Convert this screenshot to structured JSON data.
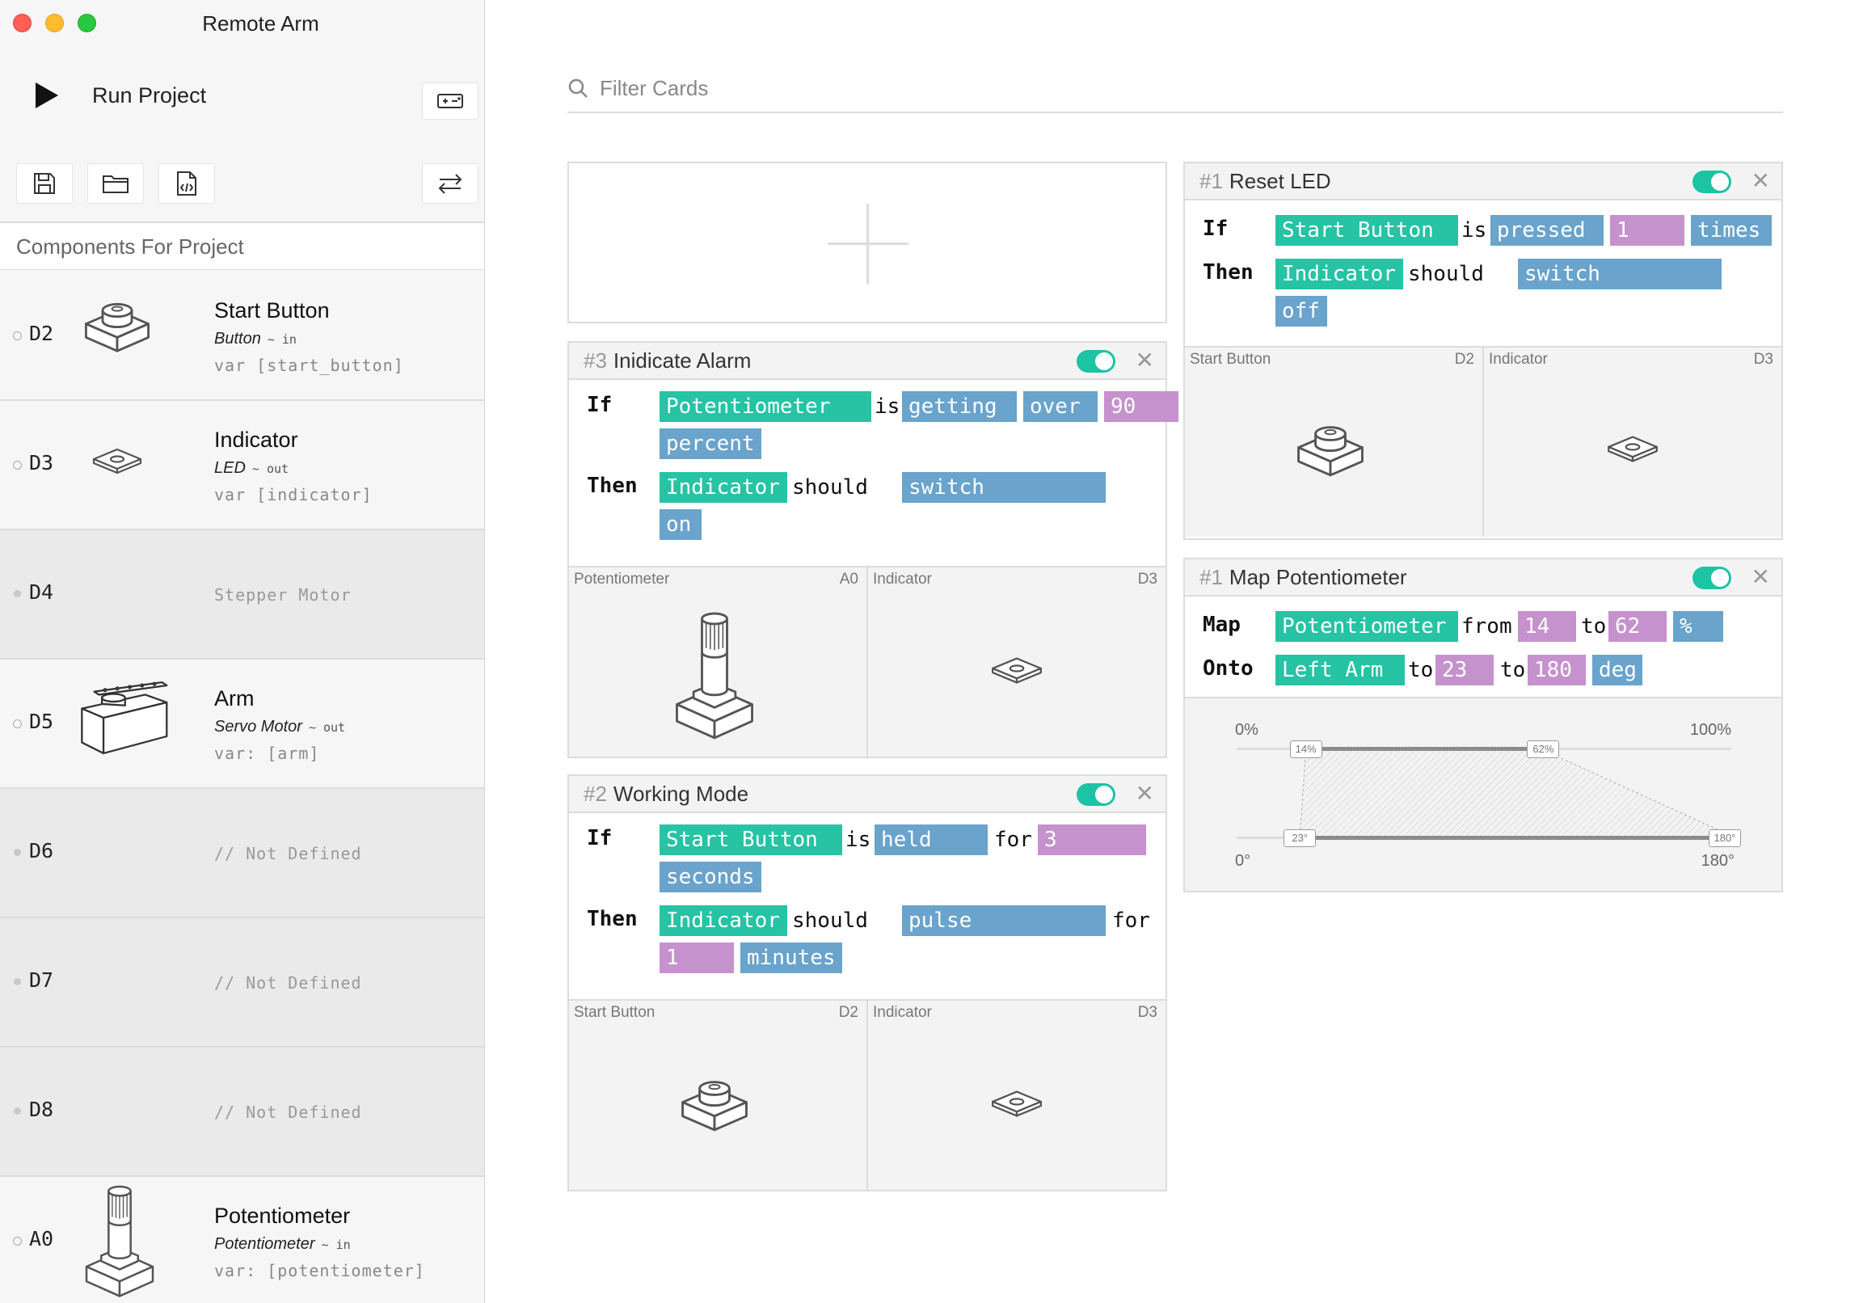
{
  "app": {
    "title": "Remote Arm"
  },
  "toolbar": {
    "run_label": "Run Project",
    "icons": [
      "play-icon",
      "keyboard-icon",
      "save-icon",
      "folder-icon",
      "code-file-icon",
      "swap-icon"
    ]
  },
  "sidebar": {
    "header": "Components For Project",
    "pins": [
      {
        "pin": "D2",
        "name": "Start Button",
        "type": "Button",
        "dir": "in",
        "var": "var [start_button]"
      },
      {
        "pin": "D3",
        "name": "Indicator",
        "type": "LED",
        "dir": "out",
        "var": "var [indicator]"
      },
      {
        "pin": "D4",
        "empty": "Stepper Motor"
      },
      {
        "pin": "D5",
        "name": "Arm",
        "type": "Servo Motor",
        "dir": "out",
        "var": "var: [arm]"
      },
      {
        "pin": "D6",
        "empty": "// Not Defined"
      },
      {
        "pin": "D7",
        "empty": "// Not Defined"
      },
      {
        "pin": "D8",
        "empty": "// Not Defined"
      },
      {
        "pin": "A0",
        "name": "Potentiometer",
        "type": "Potentiometer",
        "dir": "in",
        "var": "var: [potentiometer]"
      }
    ]
  },
  "search": {
    "placeholder": "Filter Cards"
  },
  "cards": {
    "alarm": {
      "num": "#3",
      "title": "Inidicate Alarm",
      "enabled": true,
      "if_kw": "If",
      "then_kw": "Then",
      "if_subject": "Potentiometer",
      "if_verb": "is",
      "if_state": "getting",
      "if_op": "over",
      "if_value": "90",
      "if_unit": "percent",
      "then_subject": "Indicator",
      "then_verb": "should",
      "then_action": "switch",
      "then_value": "on",
      "components": [
        {
          "name": "Potentiometer",
          "pin": "A0"
        },
        {
          "name": "Indicator",
          "pin": "D3"
        }
      ]
    },
    "working": {
      "num": "#2",
      "title": "Working Mode",
      "enabled": true,
      "if_kw": "If",
      "then_kw": "Then",
      "if_subject": "Start Button",
      "if_verb": "is",
      "if_state": "held",
      "if_for": "for",
      "if_value": "3",
      "if_unit": "seconds",
      "then_subject": "Indicator",
      "then_verb": "should",
      "then_action": "pulse",
      "then_for": "for",
      "then_value": "1",
      "then_unit": "minutes",
      "components": [
        {
          "name": "Start Button",
          "pin": "D2"
        },
        {
          "name": "Indicator",
          "pin": "D3"
        }
      ]
    },
    "reset": {
      "num": "#1",
      "title": "Reset LED",
      "enabled": true,
      "if_kw": "If",
      "then_kw": "Then",
      "if_subject": "Start Button",
      "if_verb": "is",
      "if_state": "pressed",
      "if_value": "1",
      "if_unit": "times",
      "then_subject": "Indicator",
      "then_verb": "should",
      "then_action": "switch",
      "then_value": "off",
      "components": [
        {
          "name": "Start Button",
          "pin": "D2"
        },
        {
          "name": "Indicator",
          "pin": "D3"
        }
      ]
    },
    "map": {
      "num": "#1",
      "title": "Map Potentiometer",
      "enabled": true,
      "map_kw": "Map",
      "onto_kw": "Onto",
      "map_subject": "Potentiometer",
      "from_word": "from",
      "from_value": "14",
      "to_word": "to",
      "to_value": "62",
      "unit": "%",
      "onto_subject": "Left Arm",
      "onto_to_word": "to",
      "onto_from_value": "23",
      "onto_to_word2": "to",
      "onto_to_value": "180",
      "onto_unit": "deg",
      "slider": {
        "in_min_label": "0%",
        "in_max_label": "100%",
        "out_min_label": "0°",
        "out_max_label": "180°",
        "in_low": "14%",
        "in_high": "62%",
        "out_low": "23°",
        "out_high": "180°",
        "in_low_value": 14,
        "in_high_value": 62,
        "out_low_value": 23,
        "out_high_value": 180
      }
    }
  }
}
